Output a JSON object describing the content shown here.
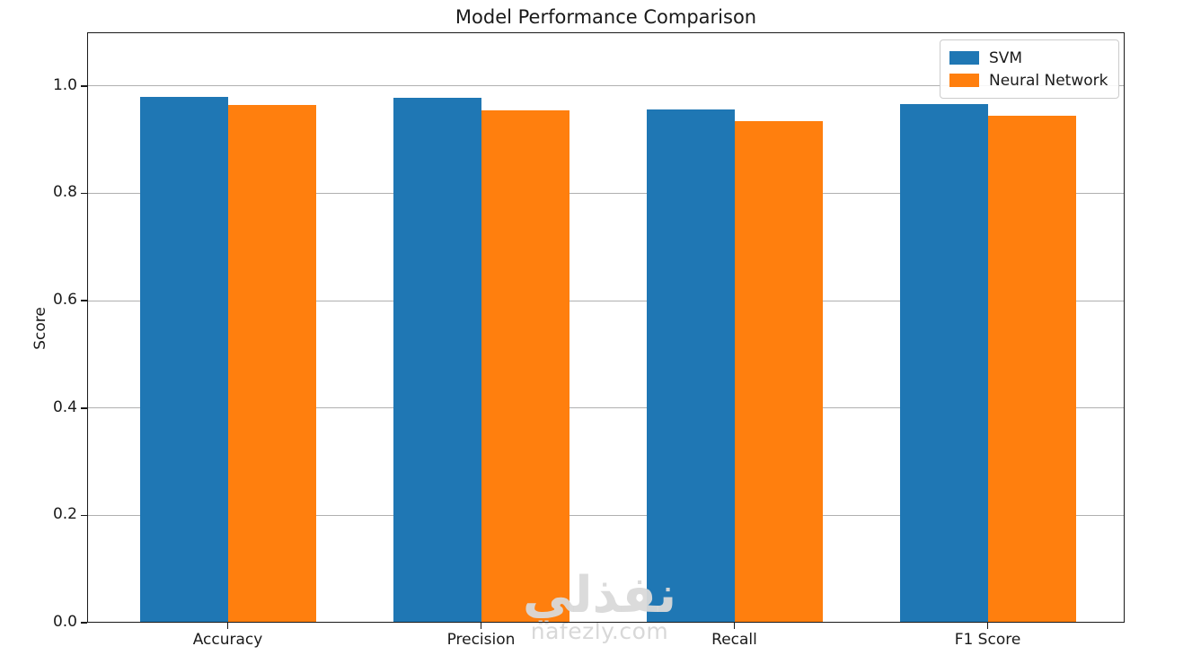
{
  "chart_data": {
    "type": "bar",
    "title": "Model Performance Comparison",
    "xlabel": "",
    "ylabel": "Score",
    "categories": [
      "Accuracy",
      "Precision",
      "Recall",
      "F1 Score"
    ],
    "series": [
      {
        "name": "SVM",
        "color": "#1f77b4",
        "values": [
          0.98,
          0.978,
          0.957,
          0.967
        ]
      },
      {
        "name": "Neural Network",
        "color": "#ff7f0e",
        "values": [
          0.965,
          0.955,
          0.935,
          0.945
        ]
      }
    ],
    "ylim": [
      0,
      1.1
    ],
    "yticks": [
      0.0,
      0.2,
      0.4,
      0.6,
      0.8,
      1.0
    ],
    "grid": true,
    "legend_position": "upper-right",
    "bar_width": 0.35
  },
  "watermark": {
    "logo_text": "نفذلي",
    "site_text": "nafezly.com"
  }
}
